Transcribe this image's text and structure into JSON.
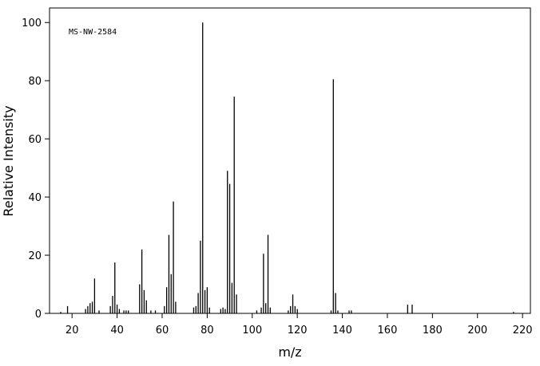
{
  "chart_data": {
    "type": "stem",
    "annotation": "MS-NW-2584",
    "x_label": "m/z",
    "y_label": "Relative Intensity",
    "x": [
      15,
      18,
      26,
      27,
      28,
      29,
      30,
      32,
      37,
      38,
      39,
      40,
      41,
      43,
      44,
      45,
      50,
      51,
      52,
      53,
      55,
      57,
      61,
      62,
      63,
      64,
      65,
      66,
      74,
      75,
      76,
      77,
      78,
      79,
      80,
      81,
      86,
      87,
      88,
      89,
      90,
      91,
      92,
      93,
      102,
      104,
      105,
      106,
      107,
      108,
      116,
      117,
      118,
      119,
      120,
      135,
      136,
      137,
      138,
      143,
      144,
      169,
      171,
      216
    ],
    "values": [
      0.5,
      2.5,
      1.5,
      2.5,
      3.5,
      4,
      12,
      1,
      2.5,
      6,
      17.5,
      3,
      1.5,
      1,
      1,
      1,
      10,
      22,
      8,
      4.5,
      1,
      1,
      2.5,
      9,
      27,
      13.5,
      38.5,
      4,
      2,
      2.5,
      7,
      25,
      100,
      8,
      9,
      2,
      1.5,
      2,
      1.5,
      49,
      44.5,
      10.5,
      74.5,
      6.5,
      1,
      2,
      20.5,
      3.5,
      27,
      2,
      1,
      2.5,
      6.5,
      2.5,
      1.5,
      1,
      80.5,
      7,
      1,
      1,
      1,
      3,
      3,
      0.5
    ],
    "color": "#000000",
    "xlim": [
      10,
      223.5
    ],
    "ylim": [
      0,
      105
    ],
    "xticks": [
      20,
      40,
      60,
      80,
      100,
      120,
      140,
      160,
      180,
      200,
      220
    ],
    "yticks": [
      0,
      20,
      40,
      60,
      80,
      100
    ]
  }
}
